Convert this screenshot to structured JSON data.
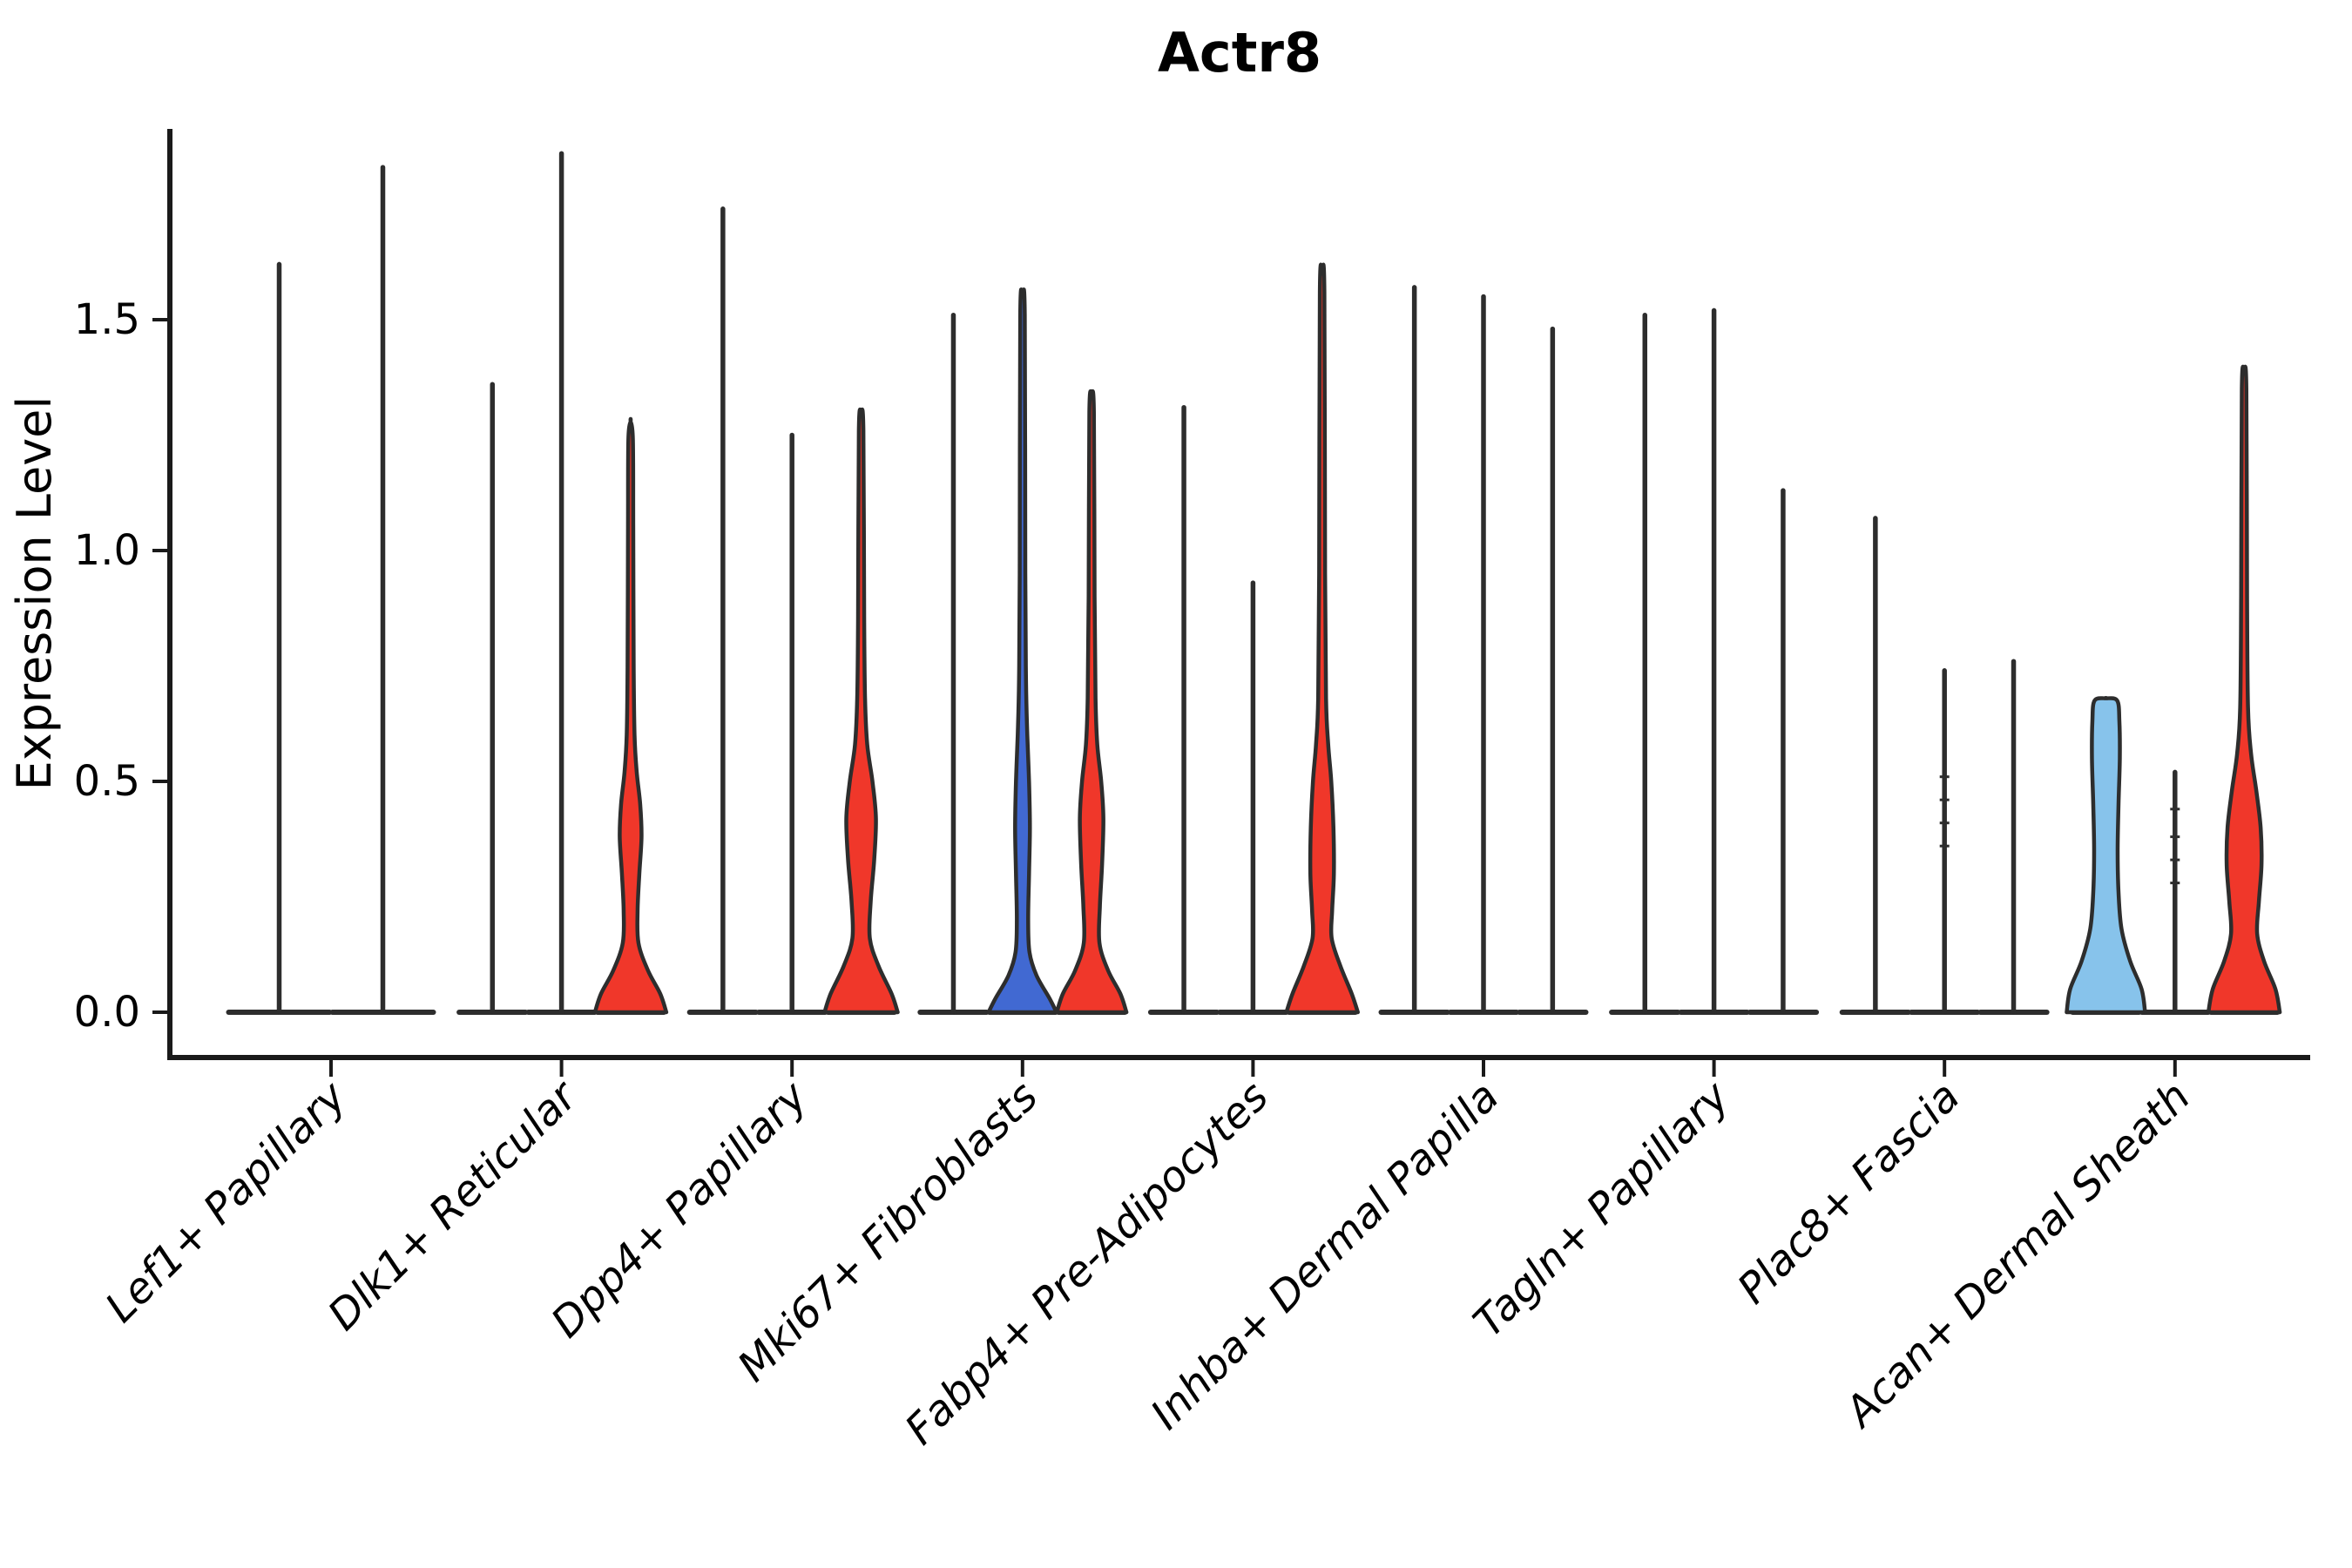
{
  "title": "Actr8",
  "axes": {
    "ylabel": "Expression Level",
    "xlabel": "",
    "ytick_labels": [
      "0.0",
      "0.5",
      "1.0",
      "1.5"
    ]
  },
  "colors": {
    "red": "#f0372a",
    "blue": "#4169d2",
    "lightblue": "#87c3eb",
    "dark": "#2d2d2d",
    "axis": "#1a1a1a"
  },
  "chart_data": {
    "type": "violin",
    "title": "Actr8",
    "ylabel": "Expression Level",
    "ylim": [
      -0.1,
      1.91
    ],
    "yticks": [
      0,
      0.5,
      1.0,
      1.5
    ],
    "legend": "none",
    "grid": false,
    "categories": [
      "Lef1+ Papillary",
      "Dlk1+ Reticular",
      "Dpp4+ Papillary",
      "Mki67+ Fibroblasts",
      "Fabp4+ Pre-Adipocytes",
      "Inhba+ Dermal Papilla",
      "Tagln+ Papillary",
      "Plac8+ Fascia",
      "Acan+ Dermal Sheath"
    ],
    "groups": [
      {
        "label": "Lef1+ Papillary",
        "violins": [
          {
            "kind": "spike",
            "color": "dark",
            "max": 1.62
          },
          {
            "kind": "spike",
            "color": "dark",
            "max": 1.83
          }
        ]
      },
      {
        "label": "Dlk1+ Reticular",
        "violins": [
          {
            "kind": "spike",
            "color": "dark",
            "max": 1.36
          },
          {
            "kind": "spike",
            "color": "dark",
            "max": 1.86
          },
          {
            "kind": "shaped",
            "color": "red",
            "max": 1.28,
            "width_profile": [
              [
                0,
                41
              ],
              [
                0.04,
                34
              ],
              [
                0.09,
                20
              ],
              [
                0.15,
                9
              ],
              [
                0.22,
                8
              ],
              [
                0.3,
                10
              ],
              [
                0.38,
                12.5
              ],
              [
                0.45,
                11
              ],
              [
                0.52,
                7
              ],
              [
                0.6,
                4.5
              ],
              [
                0.75,
                3.5
              ],
              [
                1.05,
                3
              ],
              [
                1.24,
                2.6
              ],
              [
                1.28,
                0
              ]
            ]
          }
        ]
      },
      {
        "label": "Dpp4+ Papillary",
        "violins": [
          {
            "kind": "spike",
            "color": "dark",
            "max": 1.74
          },
          {
            "kind": "spike",
            "color": "dark",
            "max": 1.25
          },
          {
            "kind": "shaped",
            "color": "red",
            "max": 1.3,
            "width_profile": [
              [
                0,
                42
              ],
              [
                0.04,
                35
              ],
              [
                0.1,
                20
              ],
              [
                0.16,
                10
              ],
              [
                0.24,
                11
              ],
              [
                0.33,
                15
              ],
              [
                0.42,
                17
              ],
              [
                0.5,
                13
              ],
              [
                0.58,
                7
              ],
              [
                0.68,
                4.5
              ],
              [
                0.85,
                3.5
              ],
              [
                1.26,
                2.6
              ],
              [
                1.3,
                0
              ]
            ]
          }
        ]
      },
      {
        "label": "Mki67+ Fibroblasts",
        "violins": [
          {
            "kind": "spike",
            "color": "dark",
            "max": 1.51
          },
          {
            "kind": "shaped",
            "color": "blue",
            "max": 1.55,
            "width_profile": [
              [
                0,
                39
              ],
              [
                0.03,
                31
              ],
              [
                0.08,
                16
              ],
              [
                0.13,
                8
              ],
              [
                0.2,
                6.5
              ],
              [
                0.3,
                7.5
              ],
              [
                0.4,
                8.5
              ],
              [
                0.5,
                7.5
              ],
              [
                0.6,
                5.5
              ],
              [
                0.72,
                4
              ],
              [
                0.95,
                3.2
              ],
              [
                1.51,
                2.6
              ],
              [
                1.55,
                0
              ]
            ]
          },
          {
            "kind": "shaped",
            "color": "red",
            "max": 1.34,
            "width_profile": [
              [
                0,
                40
              ],
              [
                0.04,
                33
              ],
              [
                0.09,
                19
              ],
              [
                0.15,
                9
              ],
              [
                0.23,
                9.5
              ],
              [
                0.32,
                12
              ],
              [
                0.42,
                13.5
              ],
              [
                0.5,
                11
              ],
              [
                0.58,
                6.5
              ],
              [
                0.68,
                4.5
              ],
              [
                0.9,
                3.4
              ],
              [
                1.3,
                2.6
              ],
              [
                1.34,
                0
              ]
            ]
          }
        ]
      },
      {
        "label": "Fabp4+ Pre-Adipocytes",
        "violins": [
          {
            "kind": "spike",
            "color": "dark",
            "max": 1.31
          },
          {
            "kind": "spike",
            "color": "dark",
            "max": 0.93
          },
          {
            "kind": "shaped",
            "color": "red",
            "max": 1.6,
            "width_profile": [
              [
                0,
                41
              ],
              [
                0.04,
                34
              ],
              [
                0.1,
                21
              ],
              [
                0.16,
                11
              ],
              [
                0.22,
                11.5
              ],
              [
                0.3,
                13.5
              ],
              [
                0.4,
                13
              ],
              [
                0.5,
                10.5
              ],
              [
                0.58,
                7
              ],
              [
                0.68,
                4.5
              ],
              [
                0.95,
                3.4
              ],
              [
                1.56,
                2.6
              ],
              [
                1.6,
                0
              ]
            ]
          }
        ]
      },
      {
        "label": "Inhba+ Dermal Papilla",
        "violins": [
          {
            "kind": "spike",
            "color": "dark",
            "max": 1.57
          },
          {
            "kind": "spike",
            "color": "dark",
            "max": 1.55
          },
          {
            "kind": "spike",
            "color": "dark",
            "max": 1.48
          }
        ]
      },
      {
        "label": "Tagln+ Papillary",
        "violins": [
          {
            "kind": "spike",
            "color": "dark",
            "max": 1.51
          },
          {
            "kind": "spike",
            "color": "dark",
            "max": 1.52
          },
          {
            "kind": "spike",
            "color": "dark",
            "max": 1.13
          }
        ]
      },
      {
        "label": "Plac8+ Fascia",
        "violins": [
          {
            "kind": "spike",
            "color": "dark",
            "max": 1.07
          },
          {
            "kind": "spike",
            "color": "dark",
            "max": 0.74,
            "marks": [
              0.36,
              0.41,
              0.46,
              0.51
            ]
          },
          {
            "kind": "spike",
            "color": "dark",
            "max": 0.76
          }
        ]
      },
      {
        "label": "Acan+ Dermal Sheath",
        "violins": [
          {
            "kind": "shaped",
            "color": "lightblue",
            "max": 0.68,
            "width_profile": [
              [
                0,
                45
              ],
              [
                0.05,
                41
              ],
              [
                0.11,
                28
              ],
              [
                0.18,
                18
              ],
              [
                0.26,
                14.5
              ],
              [
                0.35,
                13.5
              ],
              [
                0.45,
                14.5
              ],
              [
                0.55,
                16
              ],
              [
                0.63,
                15.5
              ],
              [
                0.675,
                13
              ],
              [
                0.68,
                0
              ]
            ]
          },
          {
            "kind": "spike",
            "color": "dark",
            "max": 0.52,
            "marks": [
              0.28,
              0.33,
              0.38,
              0.44
            ]
          },
          {
            "kind": "shaped",
            "color": "red",
            "max": 1.39,
            "width_profile": [
              [
                0,
                41
              ],
              [
                0.05,
                36
              ],
              [
                0.11,
                23
              ],
              [
                0.17,
                15
              ],
              [
                0.24,
                17
              ],
              [
                0.32,
                20
              ],
              [
                0.4,
                19
              ],
              [
                0.48,
                14
              ],
              [
                0.56,
                8
              ],
              [
                0.66,
                4.5
              ],
              [
                0.9,
                3.4
              ],
              [
                1.35,
                2.6
              ],
              [
                1.39,
                0
              ]
            ]
          }
        ]
      }
    ]
  }
}
